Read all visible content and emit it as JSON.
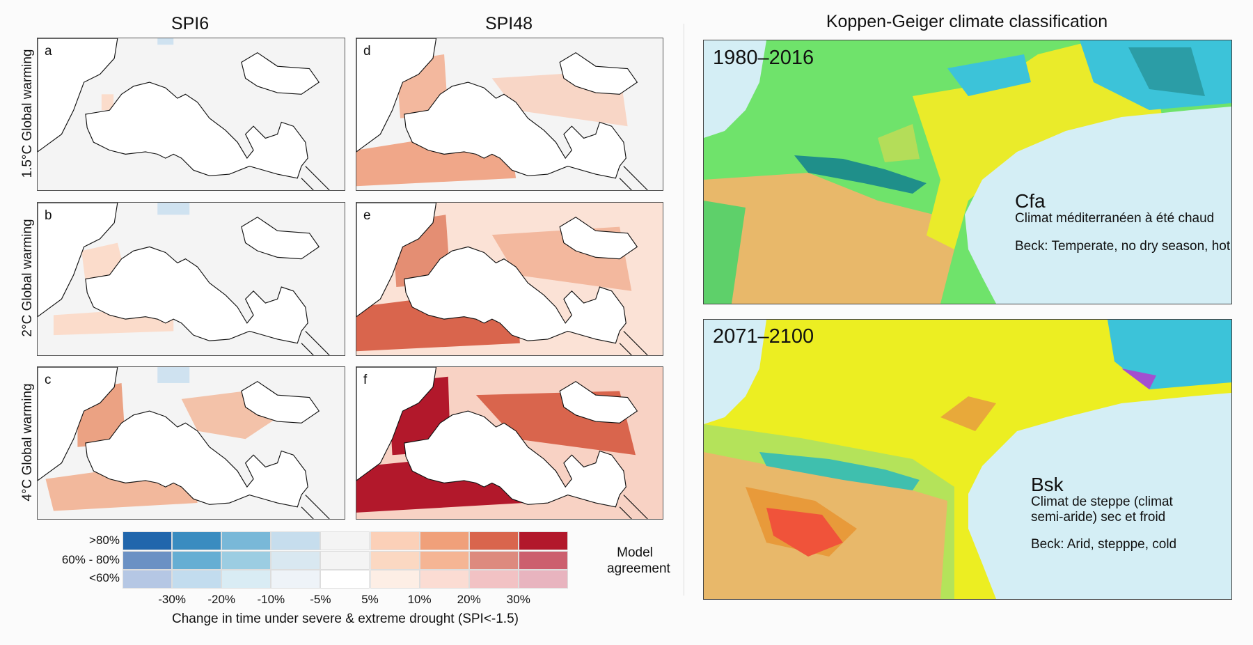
{
  "left": {
    "column_titles": [
      "SPI6",
      "SPI48"
    ],
    "row_labels": [
      "1.5°C Global warming",
      "2°C Global warming",
      "4°C Global warming"
    ],
    "panel_labels": [
      "a",
      "b",
      "c",
      "d",
      "e",
      "f"
    ]
  },
  "legend": {
    "row_labels": [
      ">80%",
      "60% - 80%",
      "<60%"
    ],
    "tick_labels": [
      "-30%",
      "-20%",
      "-10%",
      "-5%",
      "5%",
      "10%",
      "20%",
      "30%"
    ],
    "axis_title": "Change in time under severe & extreme drought (SPI<-1.5)",
    "side_title": [
      "Model",
      "agreement"
    ],
    "colors": [
      [
        "#2166ac",
        "#3a8cc0",
        "#79b8d8",
        "#c6dded",
        "#f4f4f4",
        "#fbd0b8",
        "#f0a07a",
        "#d9654d",
        "#b2182b"
      ],
      [
        "#6b91c4",
        "#66aed3",
        "#9ccde2",
        "#d9e8f1",
        "#f4f4f4",
        "#fbd8c2",
        "#f5b594",
        "#dd8a7e",
        "#cc5f6e"
      ],
      [
        "#b5c7e4",
        "#c2dcee",
        "#d9ecf4",
        "#eef3f8",
        "#ffffff",
        "#fdeee5",
        "#fbdcd3",
        "#f2c2c4",
        "#e8b4bf"
      ]
    ]
  },
  "right": {
    "title": "Koppen-Geiger climate classification",
    "maps": [
      {
        "period": "1980–2016",
        "code": "Cfa",
        "desc": [
          "Climat méditerranéen à été chaud"
        ],
        "beck": "Beck: Temperate, no dry season, hot"
      },
      {
        "period": "2071–2100",
        "code": "Bsk",
        "desc": [
          "Climat de steppe (climat",
          "semi-aride) sec et froid"
        ],
        "beck": "Beck: Arid, stepppe, cold"
      }
    ]
  }
}
